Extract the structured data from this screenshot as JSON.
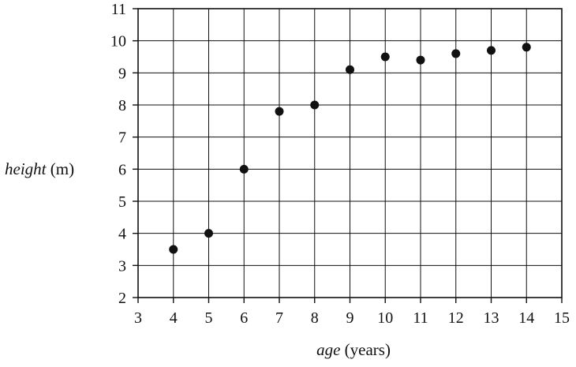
{
  "chart_data": {
    "type": "scatter",
    "x": [
      4,
      5,
      6,
      7,
      8,
      9,
      10,
      11,
      12,
      13,
      14
    ],
    "y": [
      3.5,
      4,
      6,
      7.8,
      8,
      9.1,
      9.5,
      9.4,
      9.6,
      9.7,
      9.8
    ],
    "xlabel": {
      "italic": "age",
      "plain": " (years)"
    },
    "ylabel": {
      "italic": "height",
      "plain": " (m)"
    },
    "xlim": [
      3,
      15
    ],
    "ylim": [
      2,
      11
    ],
    "xticks": [
      "3",
      "4",
      "5",
      "6",
      "7",
      "8",
      "9",
      "10",
      "11",
      "12",
      "13",
      "14",
      "15"
    ],
    "yticks": [
      "2",
      "3",
      "4",
      "5",
      "6",
      "7",
      "8",
      "9",
      "10",
      "11"
    ],
    "grid": true,
    "marker_color": "#111111"
  }
}
